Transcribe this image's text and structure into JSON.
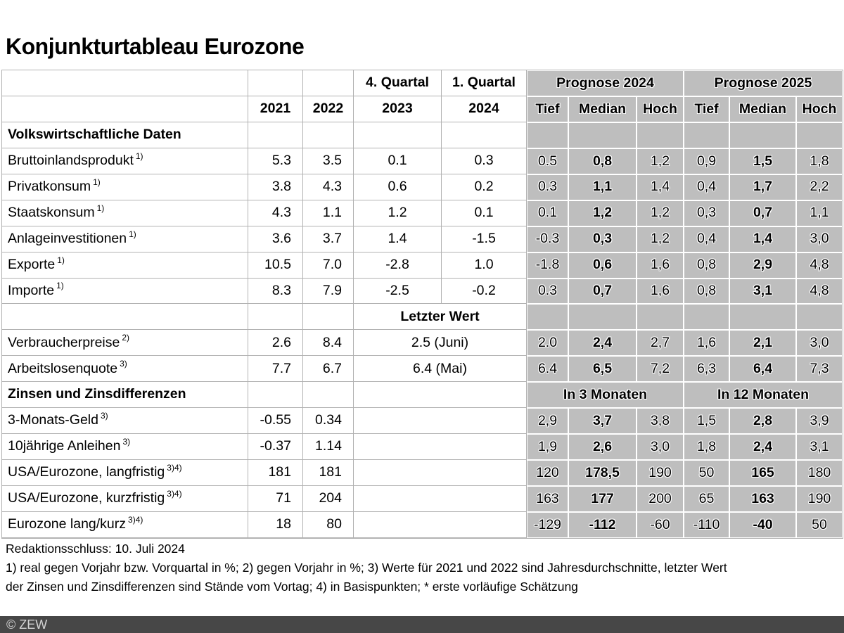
{
  "title": "Konjunkturtableau Eurozone",
  "colors": {
    "prognose_cell_gray": "#bebebe",
    "grid_line": "#b2b2b2",
    "copyright_bar": "#474747"
  },
  "footer": {
    "redaktionsschluss": "Redaktionsschluss: 10. Juli 2024",
    "fn1": "1) real gegen Vorjahr bzw. Vorquartal in %; 2) gegen Vorjahr in %; 3) Werte für 2021  und 2022 sind Jahresdurchschnitte, letzter Wert",
    "fn2": "der Zinsen und Zinsdifferenzen sind Stände vom Vortag; 4) in Basispunkten; * erste vorläufige Schätzung",
    "copyright": "© ZEW"
  },
  "table": {
    "rows": [
      {
        "cells": [
          {},
          {},
          {},
          {
            "t": "4. Quartal",
            "b": 1,
            "name": "col-header-q4"
          },
          {
            "t": "1. Quartal",
            "b": 1,
            "name": "col-header-q1"
          },
          {
            "t": "Prognose 2024",
            "b": 1,
            "g": 1,
            "span": 3,
            "name": "group-header-prognose-2024"
          },
          {
            "t": "Prognose 2025",
            "b": 1,
            "g": 1,
            "span": 3,
            "name": "group-header-prognose-2025"
          }
        ]
      },
      {
        "cells": [
          {},
          {
            "t": "2021",
            "b": 1,
            "name": "col-header-2021"
          },
          {
            "t": "2022",
            "b": 1,
            "name": "col-header-2022"
          },
          {
            "t": "2023",
            "b": 1,
            "name": "col-header-2023"
          },
          {
            "t": "2024",
            "b": 1,
            "name": "col-header-2024"
          },
          {
            "t": "Tief",
            "b": 1,
            "g": 1,
            "name": "col-header-tief-2024"
          },
          {
            "t": "Median",
            "b": 1,
            "g": 1,
            "name": "col-header-median-2024"
          },
          {
            "t": "Hoch",
            "b": 1,
            "g": 1,
            "name": "col-header-hoch-2024"
          },
          {
            "t": "Tief",
            "b": 1,
            "g": 1,
            "name": "col-header-tief-2025"
          },
          {
            "t": "Median",
            "b": 1,
            "g": 1,
            "name": "col-header-median-2025"
          },
          {
            "t": "Hoch",
            "b": 1,
            "g": 1,
            "name": "col-header-hoch-2025"
          }
        ]
      },
      {
        "cells": [
          {
            "t": "Volkswirtschaftliche Daten",
            "b": 1,
            "al": "l",
            "name": "section-header-volkswirtschaftliche-daten"
          },
          {},
          {},
          {},
          {},
          {
            "g": 1
          },
          {
            "g": 1
          },
          {
            "g": 1
          },
          {
            "g": 1
          },
          {
            "g": 1
          },
          {
            "g": 1
          }
        ]
      },
      {
        "cells": [
          {
            "t": "Bruttoinlandsprodukt",
            "sup": "1)",
            "al": "l",
            "name": "row-label-bruttoinlandsprodukt"
          },
          {
            "t": "5.3",
            "al": "r"
          },
          {
            "t": "3.5",
            "al": "r"
          },
          {
            "t": "0.1"
          },
          {
            "t": "0.3"
          },
          {
            "t": "0.5",
            "g": 1
          },
          {
            "t": "0,8",
            "g": 1,
            "b": 1
          },
          {
            "t": "1,2",
            "g": 1
          },
          {
            "t": "0,9",
            "g": 1
          },
          {
            "t": "1,5",
            "g": 1,
            "b": 1
          },
          {
            "t": "1,8",
            "g": 1
          }
        ]
      },
      {
        "cells": [
          {
            "t": "Privatkonsum",
            "sup": "1)",
            "al": "l",
            "name": "row-label-privatkonsum"
          },
          {
            "t": "3.8",
            "al": "r"
          },
          {
            "t": "4.3",
            "al": "r"
          },
          {
            "t": "0.6"
          },
          {
            "t": "0.2"
          },
          {
            "t": "0.3",
            "g": 1
          },
          {
            "t": "1,1",
            "g": 1,
            "b": 1
          },
          {
            "t": "1,4",
            "g": 1
          },
          {
            "t": "0,4",
            "g": 1
          },
          {
            "t": "1,7",
            "g": 1,
            "b": 1
          },
          {
            "t": "2,2",
            "g": 1
          }
        ]
      },
      {
        "cells": [
          {
            "t": "Staatskonsum",
            "sup": "1)",
            "al": "l",
            "name": "row-label-staatskonsum"
          },
          {
            "t": "4.3",
            "al": "r"
          },
          {
            "t": "1.1",
            "al": "r"
          },
          {
            "t": "1.2"
          },
          {
            "t": "0.1"
          },
          {
            "t": "0.1",
            "g": 1
          },
          {
            "t": "1,2",
            "g": 1,
            "b": 1
          },
          {
            "t": "1,2",
            "g": 1
          },
          {
            "t": "0,3",
            "g": 1
          },
          {
            "t": "0,7",
            "g": 1,
            "b": 1
          },
          {
            "t": "1,1",
            "g": 1
          }
        ]
      },
      {
        "cells": [
          {
            "t": "Anlageinvestitionen",
            "sup": "1)",
            "al": "l",
            "name": "row-label-anlageinvestitionen"
          },
          {
            "t": "3.6",
            "al": "r"
          },
          {
            "t": "3.7",
            "al": "r"
          },
          {
            "t": "1.4"
          },
          {
            "t": "-1.5"
          },
          {
            "t": "-0.3",
            "g": 1
          },
          {
            "t": "0,3",
            "g": 1,
            "b": 1
          },
          {
            "t": "1,2",
            "g": 1
          },
          {
            "t": "0,4",
            "g": 1
          },
          {
            "t": "1,4",
            "g": 1,
            "b": 1
          },
          {
            "t": "3,0",
            "g": 1
          }
        ]
      },
      {
        "cells": [
          {
            "t": "Exporte",
            "sup": "1)",
            "al": "l",
            "name": "row-label-exporte"
          },
          {
            "t": "10.5",
            "al": "r"
          },
          {
            "t": "7.0",
            "al": "r"
          },
          {
            "t": "-2.8"
          },
          {
            "t": "1.0"
          },
          {
            "t": "-1.8",
            "g": 1
          },
          {
            "t": "0,6",
            "g": 1,
            "b": 1
          },
          {
            "t": "1,6",
            "g": 1
          },
          {
            "t": "0,8",
            "g": 1
          },
          {
            "t": "2,9",
            "g": 1,
            "b": 1
          },
          {
            "t": "4,8",
            "g": 1
          }
        ]
      },
      {
        "cells": [
          {
            "t": "Importe",
            "sup": "1)",
            "al": "l",
            "name": "row-label-importe"
          },
          {
            "t": "8.3",
            "al": "r"
          },
          {
            "t": "7.9",
            "al": "r"
          },
          {
            "t": "-2.5"
          },
          {
            "t": "-0.2"
          },
          {
            "t": "0.3",
            "g": 1
          },
          {
            "t": "0,7",
            "g": 1,
            "b": 1
          },
          {
            "t": "1,6",
            "g": 1
          },
          {
            "t": "0,8",
            "g": 1
          },
          {
            "t": "3,1",
            "g": 1,
            "b": 1
          },
          {
            "t": "4,8",
            "g": 1
          }
        ]
      },
      {
        "cells": [
          {},
          {},
          {},
          {
            "t": "Letzter Wert",
            "b": 1,
            "span": 2,
            "name": "subheader-letzter-wert"
          },
          {
            "g": 1
          },
          {
            "g": 1
          },
          {
            "g": 1
          },
          {
            "g": 1
          },
          {
            "g": 1
          },
          {
            "g": 1
          }
        ]
      },
      {
        "cells": [
          {
            "t": "Verbraucherpreise",
            "sup": "2)",
            "al": "l",
            "name": "row-label-verbraucherpreise"
          },
          {
            "t": "2.6",
            "al": "r"
          },
          {
            "t": "8.4",
            "al": "r"
          },
          {
            "t": "2.5 (Juni)",
            "span": 2
          },
          {
            "t": "2.0",
            "g": 1
          },
          {
            "t": "2,4",
            "g": 1,
            "b": 1
          },
          {
            "t": "2,7",
            "g": 1
          },
          {
            "t": "1,6",
            "g": 1
          },
          {
            "t": "2,1",
            "g": 1,
            "b": 1
          },
          {
            "t": "3,0",
            "g": 1
          }
        ]
      },
      {
        "cells": [
          {
            "t": "Arbeitslosenquote",
            "sup": "3)",
            "al": "l",
            "name": "row-label-arbeitslosenquote"
          },
          {
            "t": "7.7",
            "al": "r"
          },
          {
            "t": "6.7",
            "al": "r"
          },
          {
            "t": "6.4 (Mai)",
            "span": 2
          },
          {
            "t": "6.4",
            "g": 1
          },
          {
            "t": "6,5",
            "g": 1,
            "b": 1
          },
          {
            "t": "7,2",
            "g": 1
          },
          {
            "t": "6,3",
            "g": 1
          },
          {
            "t": "6,4",
            "g": 1,
            "b": 1
          },
          {
            "t": "7,3",
            "g": 1
          }
        ]
      },
      {
        "cells": [
          {
            "t": "Zinsen und Zinsdifferenzen",
            "b": 1,
            "al": "l",
            "name": "section-header-zinsen"
          },
          {},
          {},
          {
            "span": 2
          },
          {
            "t": "In 3 Monaten",
            "b": 1,
            "g": 1,
            "span": 3,
            "name": "subheader-in-3-monaten"
          },
          {
            "t": "In 12 Monaten",
            "b": 1,
            "g": 1,
            "span": 3,
            "name": "subheader-in-12-monaten"
          }
        ]
      },
      {
        "cells": [
          {
            "t": "3-Monats-Geld",
            "sup": "3)",
            "al": "l",
            "name": "row-label-3-monats-geld"
          },
          {
            "t": "-0.55",
            "al": "r"
          },
          {
            "t": "0.34",
            "al": "r"
          },
          {
            "span": 2
          },
          {
            "t": "2,9",
            "g": 1
          },
          {
            "t": "3,7",
            "g": 1,
            "b": 1
          },
          {
            "t": "3,8",
            "g": 1
          },
          {
            "t": "1,5",
            "g": 1
          },
          {
            "t": "2,8",
            "g": 1,
            "b": 1
          },
          {
            "t": "3,9",
            "g": 1
          }
        ]
      },
      {
        "cells": [
          {
            "t": "10jährige Anleihen",
            "sup": "3)",
            "al": "l",
            "name": "row-label-10jaehrige-anleihen"
          },
          {
            "t": "-0.37",
            "al": "r"
          },
          {
            "t": "1.14",
            "al": "r"
          },
          {
            "span": 2
          },
          {
            "t": "1,9",
            "g": 1
          },
          {
            "t": "2,6",
            "g": 1,
            "b": 1
          },
          {
            "t": "3,0",
            "g": 1
          },
          {
            "t": "1,8",
            "g": 1
          },
          {
            "t": "2,4",
            "g": 1,
            "b": 1
          },
          {
            "t": "3,1",
            "g": 1
          }
        ]
      },
      {
        "cells": [
          {
            "t": "USA/Eurozone, langfristig",
            "sup": "3)4)",
            "al": "l",
            "name": "row-label-usa-eurozone-langfristig"
          },
          {
            "t": "181",
            "al": "r"
          },
          {
            "t": "181",
            "al": "r"
          },
          {
            "span": 2
          },
          {
            "t": "120",
            "g": 1
          },
          {
            "t": "178,5",
            "g": 1,
            "b": 1
          },
          {
            "t": "190",
            "g": 1
          },
          {
            "t": "50",
            "g": 1
          },
          {
            "t": "165",
            "g": 1,
            "b": 1
          },
          {
            "t": "180",
            "g": 1
          }
        ]
      },
      {
        "cells": [
          {
            "t": "USA/Eurozone, kurzfristig",
            "sup": "3)4)",
            "al": "l",
            "name": "row-label-usa-eurozone-kurzfristig"
          },
          {
            "t": "71",
            "al": "r"
          },
          {
            "t": "204",
            "al": "r"
          },
          {
            "span": 2
          },
          {
            "t": "163",
            "g": 1
          },
          {
            "t": "177",
            "g": 1,
            "b": 1
          },
          {
            "t": "200",
            "g": 1
          },
          {
            "t": "65",
            "g": 1
          },
          {
            "t": "163",
            "g": 1,
            "b": 1
          },
          {
            "t": "190",
            "g": 1
          }
        ]
      },
      {
        "cells": [
          {
            "t": "Eurozone lang/kurz",
            "sup": "3)4)",
            "al": "l",
            "name": "row-label-eurozone-lang-kurz"
          },
          {
            "t": "18",
            "al": "r"
          },
          {
            "t": "80",
            "al": "r"
          },
          {
            "span": 2
          },
          {
            "t": "-129",
            "g": 1
          },
          {
            "t": "-112",
            "g": 1,
            "b": 1
          },
          {
            "t": "-60",
            "g": 1
          },
          {
            "t": "-110",
            "g": 1
          },
          {
            "t": "-40",
            "g": 1,
            "b": 1
          },
          {
            "t": "50",
            "g": 1
          }
        ]
      }
    ]
  }
}
